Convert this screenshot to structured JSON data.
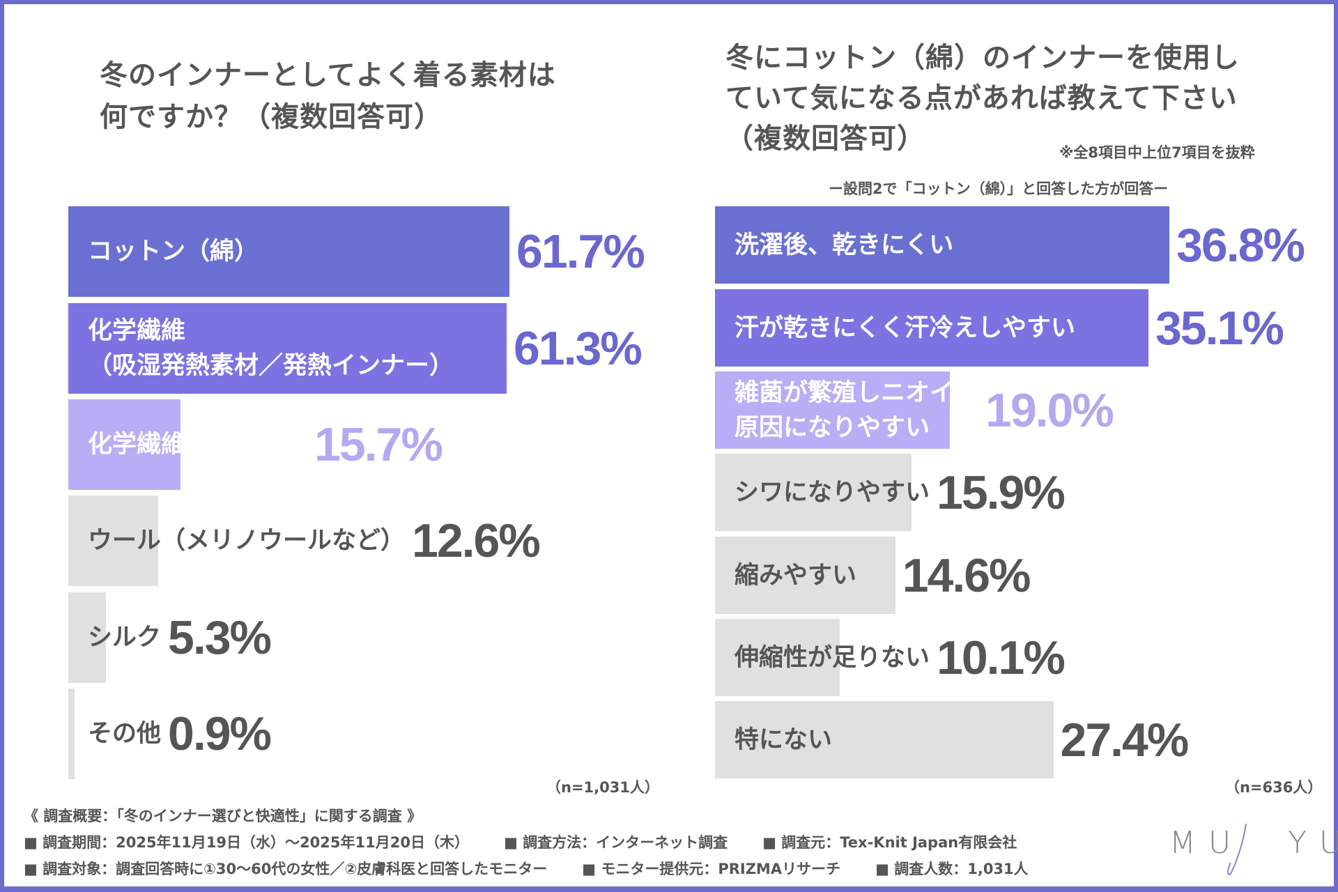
{
  "chart_data": [
    {
      "type": "bar",
      "orientation": "horizontal",
      "title": "冬のインナーとしてよく着る素材は\n何ですか？（複数回答可）",
      "n": "（n=1,031人）",
      "xlim": [
        0,
        100
      ],
      "categories": [
        "コットン（綿）",
        "化学繊維\n（吸湿発熱素材／発熱インナー）",
        "化学繊維（その他）",
        "ウール（メリノウールなど）",
        "シルク",
        "その他"
      ],
      "values": [
        61.7,
        61.3,
        15.7,
        12.6,
        5.3,
        0.9
      ],
      "labels": [
        "61.7%",
        "61.3%",
        "15.7%",
        "12.6%",
        "5.3%",
        "0.9%"
      ],
      "bar_colors": [
        "#6a6fd2",
        "#7c72e2",
        "#b9aef5",
        "#e0e0e0",
        "#e0e0e0",
        "#e0e0e0"
      ],
      "label_colors": [
        "#fff",
        "#fff",
        "#fff",
        "#555",
        "#555",
        "#555"
      ],
      "value_colors": [
        "#6a67d0",
        "#6a67d0",
        "#b5a8f0",
        "#555",
        "#555",
        "#555"
      ]
    },
    {
      "type": "bar",
      "orientation": "horizontal",
      "title": "冬にコットン（綿）のインナーを使用し\nていて気になる点があれば教えて下さい\n（複数回答可）",
      "note": "※全8項目中上位7項目を抜粋",
      "subtitle": "ー設問2で「コットン（綿）」と回答した方が回答ー",
      "n": "（n=636人）",
      "xlim": [
        0,
        100
      ],
      "categories": [
        "洗濯後、乾きにくい",
        "汗が乾きにくく汗冷えしやすい",
        "雑菌が繁殖しニオイの\n原因になりやすい",
        "シワになりやすい",
        "縮みやすい",
        "伸縮性が足りない",
        "特にない"
      ],
      "values": [
        36.8,
        35.1,
        19.0,
        15.9,
        14.6,
        10.1,
        27.4
      ],
      "labels": [
        "36.8%",
        "35.1%",
        "19.0%",
        "15.9%",
        "14.6%",
        "10.1%",
        "27.4%"
      ],
      "bar_colors": [
        "#6a6fd2",
        "#7c72e2",
        "#b9aef5",
        "#e0e0e0",
        "#e0e0e0",
        "#e0e0e0",
        "#e0e0e0"
      ],
      "label_colors": [
        "#fff",
        "#fff",
        "#fff",
        "#555",
        "#555",
        "#555",
        "#555"
      ],
      "value_colors": [
        "#6a67d0",
        "#6a67d0",
        "#b5a8f0",
        "#555",
        "#555",
        "#555",
        "#555"
      ]
    }
  ],
  "footer": {
    "heading": "《 調査概要：「冬のインナー選びと快適性」に関する調査 》",
    "line1": [
      "■ 調査期間：2025年11月19日（水）〜2025年11月20日（木）",
      "■ 調査方法：インターネット調査",
      "■ 調査元：Tex-Knit Japan有限会社"
    ],
    "line2": [
      "■ 調査対象：調査回答時に①30〜60代の女性／②皮膚科医と回答したモニター",
      "■ モニター提供元：PRIZMAリサーチ",
      "■ 調査人数：1,031人"
    ]
  },
  "logo": "MUJYU"
}
